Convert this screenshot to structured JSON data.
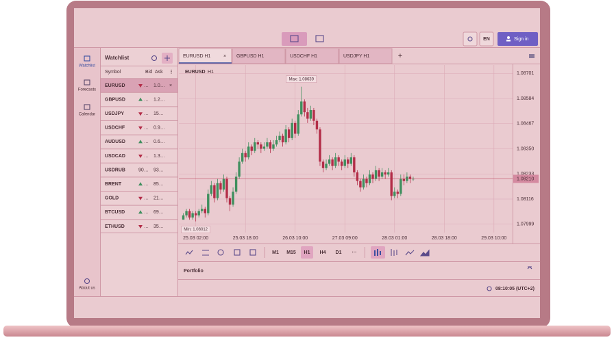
{
  "header": {
    "language": "EN",
    "sign_in": "Sign in"
  },
  "nav": {
    "items": [
      "Watchlist",
      "Forecasts",
      "Calendar"
    ],
    "active": 0,
    "about": "About us"
  },
  "watchlist": {
    "title": "Watchlist",
    "columns": [
      "Symbol",
      "Bid",
      "Ask"
    ],
    "selected": 0,
    "rows": [
      {
        "symbol": "EURUSD",
        "trend": "down",
        "bid": "…",
        "ask": "1.0…"
      },
      {
        "symbol": "GBPUSD",
        "trend": "up",
        "bid": "…",
        "ask": "1.2…"
      },
      {
        "symbol": "USDJPY",
        "trend": "down",
        "bid": "…",
        "ask": "15…"
      },
      {
        "symbol": "USDCHF",
        "trend": "down",
        "bid": "…",
        "ask": "0.9…"
      },
      {
        "symbol": "AUDUSD",
        "trend": "up",
        "bid": "…",
        "ask": "0.6…"
      },
      {
        "symbol": "USDCAD",
        "trend": "down",
        "bid": "…",
        "ask": "1.3…"
      },
      {
        "symbol": "USDRUB",
        "bid": "90…",
        "ask": "93…"
      },
      {
        "symbol": "BRENT",
        "trend": "up",
        "bid": "…",
        "ask": "85…"
      },
      {
        "symbol": "GOLD",
        "trend": "down",
        "bid": "…",
        "ask": "21…"
      },
      {
        "symbol": "BTCUSD",
        "trend": "up",
        "bid": "…",
        "ask": "69…"
      },
      {
        "symbol": "ETHUSD",
        "trend": "down",
        "bid": "…",
        "ask": "35…"
      }
    ]
  },
  "tabs": {
    "items": [
      "EURUSD H1",
      "GBPUSD H1",
      "USDCHF H1",
      "USDJPY H1"
    ],
    "active": 0
  },
  "chart_data": {
    "type": "candlestick",
    "symbol": "EURUSD",
    "timeframe": "H1",
    "up_color": "#3f8f5e",
    "down_color": "#b32d48",
    "grid": true,
    "ylim": [
      1.0796,
      1.0874
    ],
    "yticks": [
      1.08701,
      1.08584,
      1.08467,
      {
        "value": 1.0835,
        "label": "1.08350"
      },
      1.08233,
      1.08116,
      1.07999
    ],
    "xlim": [
      -1,
      106
    ],
    "xticks": [
      {
        "value": 4,
        "label": "25.03 02:00"
      },
      {
        "value": 20,
        "label": "25.03 18:00"
      },
      {
        "value": 36,
        "label": "26.03 10:00"
      },
      {
        "value": 52,
        "label": "27.03 09:00"
      },
      {
        "value": 68,
        "label": "28.03 01:00"
      },
      {
        "value": 84,
        "label": "28.03 18:00"
      },
      {
        "value": 100,
        "label": "29.03 10:00"
      }
    ],
    "current_price": {
      "value": 1.0821,
      "label": "1.08210"
    },
    "max_label": "Max: 1.08639",
    "min_label": "Min: 1.08012",
    "candles": [
      [
        1.0802,
        1.0805,
        1.0802,
        1.0804
      ],
      [
        1.0804,
        1.0807,
        1.0803,
        1.0806
      ],
      [
        1.0806,
        1.0807,
        1.0802,
        1.0803
      ],
      [
        1.0803,
        1.0806,
        1.0802,
        1.0805
      ],
      [
        1.0805,
        1.0806,
        1.08012,
        1.0804
      ],
      [
        1.0804,
        1.0807,
        1.0803,
        1.0806
      ],
      [
        1.0806,
        1.0809,
        1.0805,
        1.0807
      ],
      [
        1.0807,
        1.0808,
        1.0803,
        1.0805
      ],
      [
        1.0805,
        1.0816,
        1.0804,
        1.0814
      ],
      [
        1.0814,
        1.082,
        1.0813,
        1.0818
      ],
      [
        1.0818,
        1.0819,
        1.081,
        1.0812
      ],
      [
        1.0812,
        1.0821,
        1.0811,
        1.0819
      ],
      [
        1.0819,
        1.082,
        1.0814,
        1.0816
      ],
      [
        1.0816,
        1.0823,
        1.0815,
        1.0821
      ],
      [
        1.0821,
        1.0822,
        1.081,
        1.0812
      ],
      [
        1.0812,
        1.0813,
        1.0806,
        1.0809
      ],
      [
        1.0809,
        1.0817,
        1.0808,
        1.0815
      ],
      [
        1.0815,
        1.0824,
        1.0814,
        1.0822
      ],
      [
        1.0822,
        1.0831,
        1.0821,
        1.0829
      ],
      [
        1.0829,
        1.0835,
        1.0828,
        1.0833
      ],
      [
        1.0833,
        1.0834,
        1.0829,
        1.0831
      ],
      [
        1.0831,
        1.0838,
        1.083,
        1.0836
      ],
      [
        1.0836,
        1.0837,
        1.0832,
        1.0834
      ],
      [
        1.0834,
        1.084,
        1.0833,
        1.0838
      ],
      [
        1.0838,
        1.0839,
        1.0835,
        1.0837
      ],
      [
        1.0837,
        1.0838,
        1.0833,
        1.0835
      ],
      [
        1.0835,
        1.0838,
        1.0834,
        1.0836
      ],
      [
        1.0836,
        1.084,
        1.0835,
        1.0838
      ],
      [
        1.0838,
        1.0839,
        1.0833,
        1.0835
      ],
      [
        1.0835,
        1.0839,
        1.0834,
        1.0837
      ],
      [
        1.0837,
        1.0841,
        1.0836,
        1.0839
      ],
      [
        1.0839,
        1.0843,
        1.0838,
        1.0841
      ],
      [
        1.0841,
        1.0842,
        1.0836,
        1.0838
      ],
      [
        1.0838,
        1.0846,
        1.0837,
        1.0844
      ],
      [
        1.0844,
        1.0845,
        1.0838,
        1.084
      ],
      [
        1.084,
        1.0849,
        1.0839,
        1.0847
      ],
      [
        1.0847,
        1.0848,
        1.084,
        1.0842
      ],
      [
        1.0842,
        1.0853,
        1.0841,
        1.0851
      ],
      [
        1.0851,
        1.08639,
        1.085,
        1.0857
      ],
      [
        1.0857,
        1.0858,
        1.085,
        1.0852
      ],
      [
        1.0852,
        1.0854,
        1.0847,
        1.0849
      ],
      [
        1.0849,
        1.0855,
        1.0848,
        1.0853
      ],
      [
        1.0853,
        1.0854,
        1.0846,
        1.0848
      ],
      [
        1.0848,
        1.0849,
        1.0842,
        1.0844
      ],
      [
        1.0844,
        1.0845,
        1.0827,
        1.0829
      ],
      [
        1.0829,
        1.083,
        1.0824,
        1.0826
      ],
      [
        1.0826,
        1.083,
        1.0825,
        1.0828
      ],
      [
        1.0828,
        1.0832,
        1.0827,
        1.083
      ],
      [
        1.083,
        1.0831,
        1.0825,
        1.0827
      ],
      [
        1.0827,
        1.0833,
        1.0826,
        1.0831
      ],
      [
        1.0831,
        1.0832,
        1.0827,
        1.0829
      ],
      [
        1.0829,
        1.083,
        1.0825,
        1.0827
      ],
      [
        1.0827,
        1.0832,
        1.0826,
        1.083
      ],
      [
        1.083,
        1.0831,
        1.0826,
        1.0828
      ],
      [
        1.0828,
        1.0833,
        1.0827,
        1.0831
      ],
      [
        1.0831,
        1.0832,
        1.0822,
        1.0824
      ],
      [
        1.0824,
        1.0825,
        1.0818,
        1.082
      ],
      [
        1.082,
        1.0821,
        1.0815,
        1.0817
      ],
      [
        1.0817,
        1.0823,
        1.0816,
        1.0821
      ],
      [
        1.0821,
        1.0822,
        1.0817,
        1.0819
      ],
      [
        1.0819,
        1.0825,
        1.0818,
        1.0823
      ],
      [
        1.0823,
        1.0824,
        1.0819,
        1.0821
      ],
      [
        1.0821,
        1.0827,
        1.082,
        1.0825
      ],
      [
        1.0825,
        1.0826,
        1.082,
        1.0822
      ],
      [
        1.0822,
        1.0826,
        1.0821,
        1.0824
      ],
      [
        1.0824,
        1.0825,
        1.0821,
        1.0823
      ],
      [
        1.0823,
        1.0826,
        1.0822,
        1.0824
      ],
      [
        1.0824,
        1.0825,
        1.0811,
        1.0813
      ],
      [
        1.0813,
        1.0817,
        1.0812,
        1.0815
      ],
      [
        1.0815,
        1.0816,
        1.0812,
        1.0814
      ],
      [
        1.0814,
        1.0823,
        1.0813,
        1.0821
      ],
      [
        1.0821,
        1.0823,
        1.0818,
        1.082
      ],
      [
        1.082,
        1.0824,
        1.0819,
        1.0822
      ],
      [
        1.0822,
        1.0823,
        1.0819,
        1.0821
      ],
      [
        1.0821,
        1.0822,
        1.082,
        1.0821
      ]
    ]
  },
  "toolbar": {
    "timeframes": [
      "M1",
      "M15",
      "H1",
      "H4",
      "D1",
      "···"
    ],
    "active_timeframe": 2
  },
  "portfolio": {
    "title": "Portfolio"
  },
  "status": {
    "time": "08:10:05 (UTC+2)"
  }
}
